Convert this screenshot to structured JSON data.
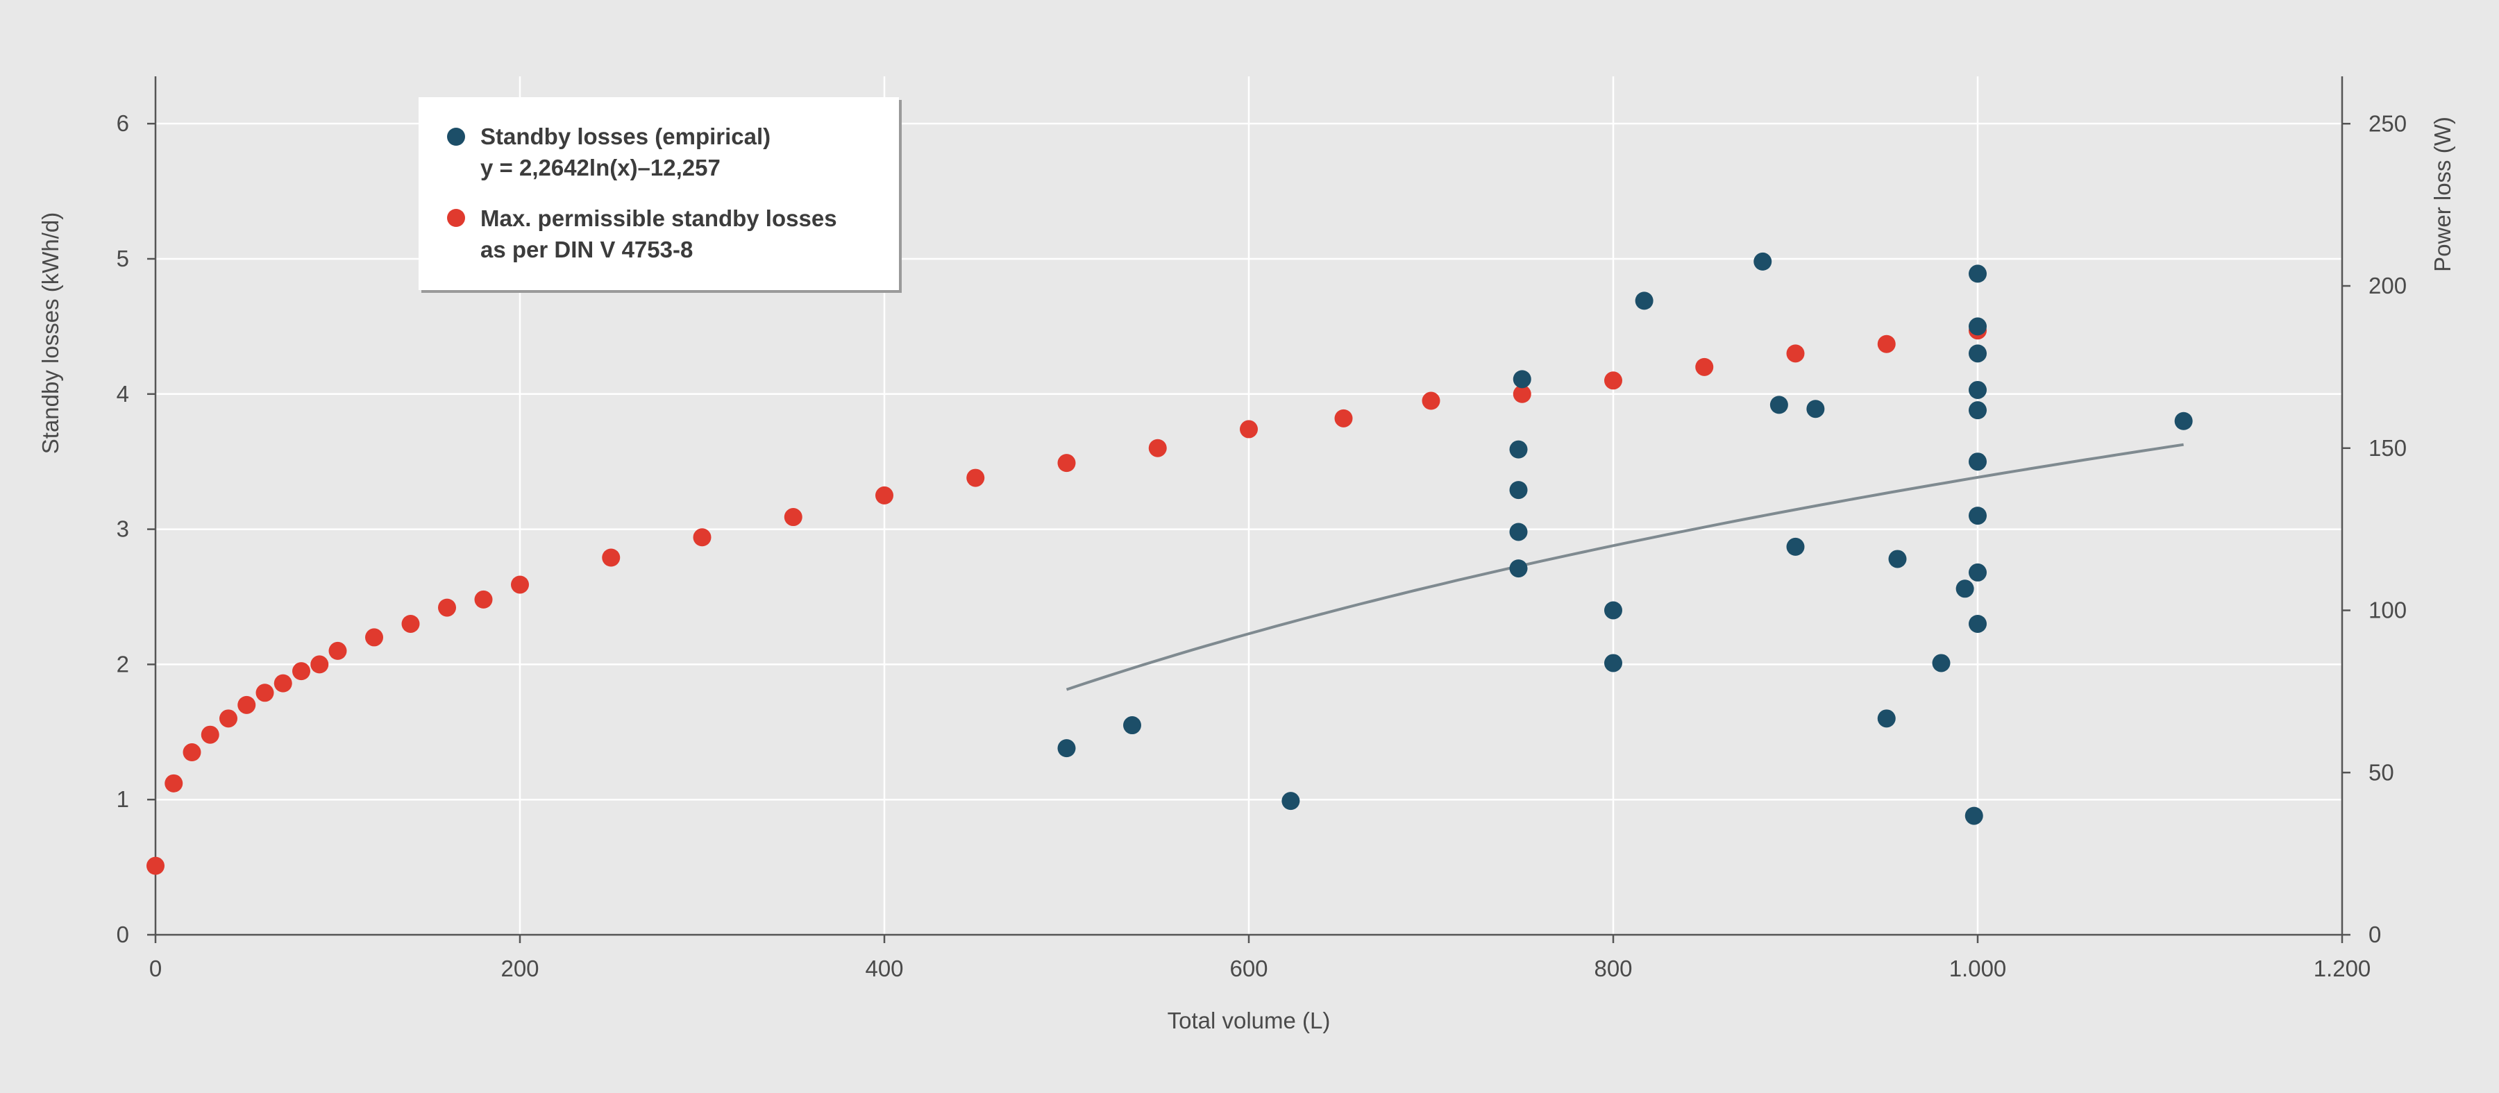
{
  "chart_data": {
    "type": "scatter",
    "xlabel": "Total volume (L)",
    "ylabel": "Standby losses (kWh/d)",
    "y2label": "Power loss (W)",
    "xlim": [
      0,
      1200
    ],
    "ylim": [
      0,
      6.35
    ],
    "y2lim": [
      0,
      264.6
    ],
    "x_ticks": [
      0,
      200,
      400,
      600,
      800,
      1000,
      1200
    ],
    "x_tick_labels": [
      "0",
      "200",
      "400",
      "600",
      "800",
      "1.000",
      "1.200"
    ],
    "y_ticks": [
      0,
      1,
      2,
      3,
      4,
      5,
      6
    ],
    "y_tick_labels": [
      "0",
      "1",
      "2",
      "3",
      "4",
      "5",
      "6"
    ],
    "y2_ticks": [
      0,
      50,
      100,
      150,
      200,
      250
    ],
    "y2_tick_labels": [
      "0",
      "50",
      "100",
      "150",
      "200",
      "250"
    ],
    "grid": true,
    "legend_position": "top-left",
    "colors": {
      "empirical": "#1c4e68",
      "permissible": "#e03a2e",
      "trendline": "#7f8a90",
      "grid": "#ffffff",
      "axis": "#555555"
    },
    "series": [
      {
        "name_line1": "Standby losses (empirical)",
        "name_line2": "y = 2,2642ln(x)–12,257",
        "color": "#1c4e68",
        "points": [
          [
            500,
            1.38
          ],
          [
            536,
            1.55
          ],
          [
            623,
            0.99
          ],
          [
            750,
            4.11
          ],
          [
            748,
            3.59
          ],
          [
            748,
            3.29
          ],
          [
            748,
            2.98
          ],
          [
            748,
            2.71
          ],
          [
            800,
            2.4
          ],
          [
            800,
            2.01
          ],
          [
            817,
            4.69
          ],
          [
            882,
            4.98
          ],
          [
            891,
            3.92
          ],
          [
            900,
            2.87
          ],
          [
            911,
            3.89
          ],
          [
            950,
            1.6
          ],
          [
            956,
            2.78
          ],
          [
            980,
            2.01
          ],
          [
            993,
            2.56
          ],
          [
            1000,
            4.89
          ],
          [
            1000,
            4.5
          ],
          [
            1000,
            4.3
          ],
          [
            1000,
            4.03
          ],
          [
            1000,
            3.88
          ],
          [
            1000,
            3.5
          ],
          [
            1000,
            3.1
          ],
          [
            1000,
            2.68
          ],
          [
            1000,
            2.3
          ],
          [
            998,
            0.88
          ],
          [
            1113,
            3.8
          ]
        ]
      },
      {
        "name_line1": "Max. permissible standby losses",
        "name_line2": "as per DIN V 4753-8",
        "color": "#e03a2e",
        "points": [
          [
            0,
            0.51
          ],
          [
            10,
            1.12
          ],
          [
            20,
            1.35
          ],
          [
            30,
            1.48
          ],
          [
            40,
            1.6
          ],
          [
            50,
            1.7
          ],
          [
            60,
            1.79
          ],
          [
            70,
            1.86
          ],
          [
            80,
            1.95
          ],
          [
            90,
            2.0
          ],
          [
            100,
            2.1
          ],
          [
            120,
            2.2
          ],
          [
            140,
            2.3
          ],
          [
            160,
            2.42
          ],
          [
            180,
            2.48
          ],
          [
            200,
            2.59
          ],
          [
            250,
            2.79
          ],
          [
            300,
            2.94
          ],
          [
            350,
            3.09
          ],
          [
            400,
            3.25
          ],
          [
            450,
            3.38
          ],
          [
            500,
            3.49
          ],
          [
            550,
            3.6
          ],
          [
            600,
            3.74
          ],
          [
            652,
            3.82
          ],
          [
            700,
            3.95
          ],
          [
            750,
            4.0
          ],
          [
            800,
            4.1
          ],
          [
            850,
            4.2
          ],
          [
            900,
            4.3
          ],
          [
            950,
            4.37
          ],
          [
            1000,
            4.47
          ]
        ]
      }
    ],
    "trendline": {
      "type": "logarithmic",
      "a": 2.2642,
      "b": -12.257,
      "x_from": 500,
      "x_to": 1113
    }
  }
}
